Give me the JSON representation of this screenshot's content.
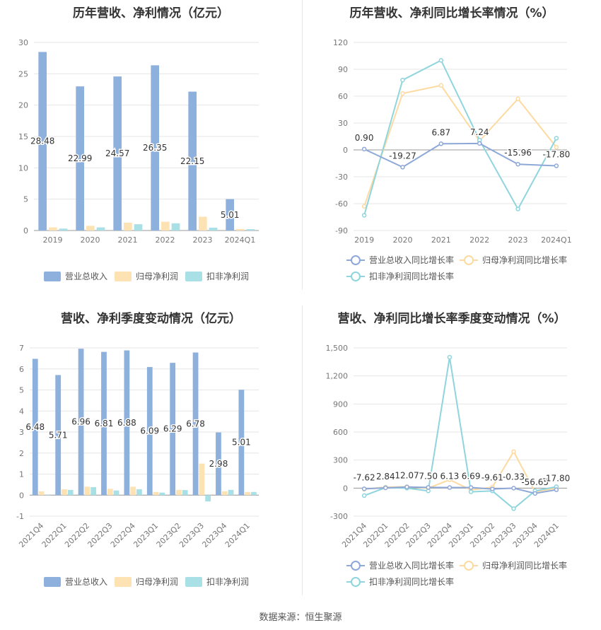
{
  "footer": "数据来源：恒生聚源",
  "colors": {
    "revenue": "#8eb0dd",
    "parent_profit": "#fde2b3",
    "deducted_profit": "#a9e0e6",
    "rev_line": "#8ea8d8",
    "parent_line": "#fddaa1",
    "deducted_line": "#8fd5de",
    "grid": "#e6e6e6",
    "axis_text": "#777777"
  },
  "chart_data": [
    {
      "id": "annual_bar",
      "type": "bar",
      "title": "历年营收、净利情况（亿元）",
      "categories": [
        "2019",
        "2020",
        "2021",
        "2022",
        "2023",
        "2024Q1"
      ],
      "series": [
        {
          "name": "营业总收入",
          "values": [
            28.48,
            22.99,
            24.57,
            26.35,
            22.15,
            5.01
          ]
        },
        {
          "name": "归母净利润",
          "values": [
            0.5,
            0.75,
            1.25,
            1.4,
            2.2,
            0.25
          ]
        },
        {
          "name": "扣非净利润",
          "values": [
            0.3,
            0.5,
            1.0,
            1.15,
            0.45,
            0.22
          ]
        }
      ],
      "labels": [
        "28.48",
        "22.99",
        "24.57",
        "26.35",
        "22.15",
        "5.01"
      ],
      "yticks": [
        "0",
        "5",
        "10",
        "15",
        "20",
        "25",
        "30"
      ],
      "ylim": [
        0,
        30
      ],
      "legend": "bottom"
    },
    {
      "id": "annual_line",
      "type": "line",
      "title": "历年营收、净利同比增长率情况（%）",
      "categories": [
        "2019",
        "2020",
        "2021",
        "2022",
        "2023",
        "2024Q1"
      ],
      "series": [
        {
          "name": "营业总收入同比增长率",
          "values": [
            0.9,
            -19.27,
            6.87,
            7.24,
            -15.96,
            -17.8
          ]
        },
        {
          "name": "归母净利润同比增长率",
          "values": [
            -63,
            63,
            72,
            10,
            57,
            3
          ]
        },
        {
          "name": "扣非净利润同比增长率",
          "values": [
            -73,
            78,
            100,
            11,
            -66,
            13
          ]
        }
      ],
      "labels": [
        "0.90",
        "-19.27",
        "6.87",
        "7.24",
        "-15.96",
        "-17.80"
      ],
      "yticks": [
        "-90",
        "-60",
        "-30",
        "0",
        "30",
        "60",
        "90",
        "120"
      ],
      "ylim": [
        -90,
        120
      ],
      "legend": "bottom"
    },
    {
      "id": "quarter_bar",
      "type": "bar",
      "title": "营收、净利季度变动情况（亿元）",
      "categories": [
        "2021Q4",
        "2022Q1",
        "2022Q2",
        "2022Q3",
        "2022Q4",
        "2023Q1",
        "2023Q2",
        "2023Q3",
        "2023Q4",
        "2024Q1"
      ],
      "series": [
        {
          "name": "营业总收入",
          "values": [
            6.48,
            5.71,
            6.96,
            6.81,
            6.88,
            6.09,
            6.29,
            6.78,
            2.98,
            5.01
          ]
        },
        {
          "name": "归母净利润",
          "values": [
            0.18,
            0.28,
            0.4,
            0.3,
            0.4,
            0.15,
            0.25,
            1.5,
            0.18,
            0.15
          ]
        },
        {
          "name": "扣非净利润",
          "values": [
            0.0,
            0.25,
            0.38,
            0.22,
            0.28,
            0.12,
            0.24,
            -0.3,
            0.25,
            0.15
          ]
        }
      ],
      "labels": [
        "6.48",
        "5.71",
        "6.96",
        "6.81",
        "6.88",
        "6.09",
        "6.29",
        "6.78",
        "2.98",
        "5.01"
      ],
      "yticks": [
        "-1",
        "0",
        "1",
        "2",
        "3",
        "4",
        "5",
        "6",
        "7"
      ],
      "ylim": [
        -1,
        7
      ],
      "legend": "bottom"
    },
    {
      "id": "quarter_line",
      "type": "line",
      "title": "营收、净利同比增长率季度变动情况（%）",
      "categories": [
        "2021Q4",
        "2022Q1",
        "2022Q2",
        "2022Q3",
        "2022Q4",
        "2023Q1",
        "2023Q2",
        "2023Q3",
        "2023Q4",
        "2024Q1"
      ],
      "series": [
        {
          "name": "营业总收入同比增长率",
          "values": [
            -7.62,
            2.84,
            12.07,
            7.5,
            6.13,
            6.69,
            -9.61,
            -0.33,
            -56.65,
            -17.8
          ]
        },
        {
          "name": "归母净利润同比增长率",
          "values": [
            -10,
            10,
            15,
            0,
            90,
            -20,
            10,
            390,
            -40,
            0
          ]
        },
        {
          "name": "扣非净利润同比增长率",
          "values": [
            -80,
            5,
            0,
            -30,
            1400,
            -40,
            -30,
            -220,
            -30,
            15
          ]
        }
      ],
      "labels": [
        "-7.62",
        "2.84",
        "12.07",
        "7.50",
        "6.13",
        "6.69",
        "-9.61",
        "-0.33",
        "-56.65",
        "-17.80"
      ],
      "yticks": [
        "-300",
        "0",
        "300",
        "600",
        "900",
        "1,200",
        "1,500"
      ],
      "ylim": [
        -300,
        1500
      ],
      "legend": "bottom"
    }
  ]
}
